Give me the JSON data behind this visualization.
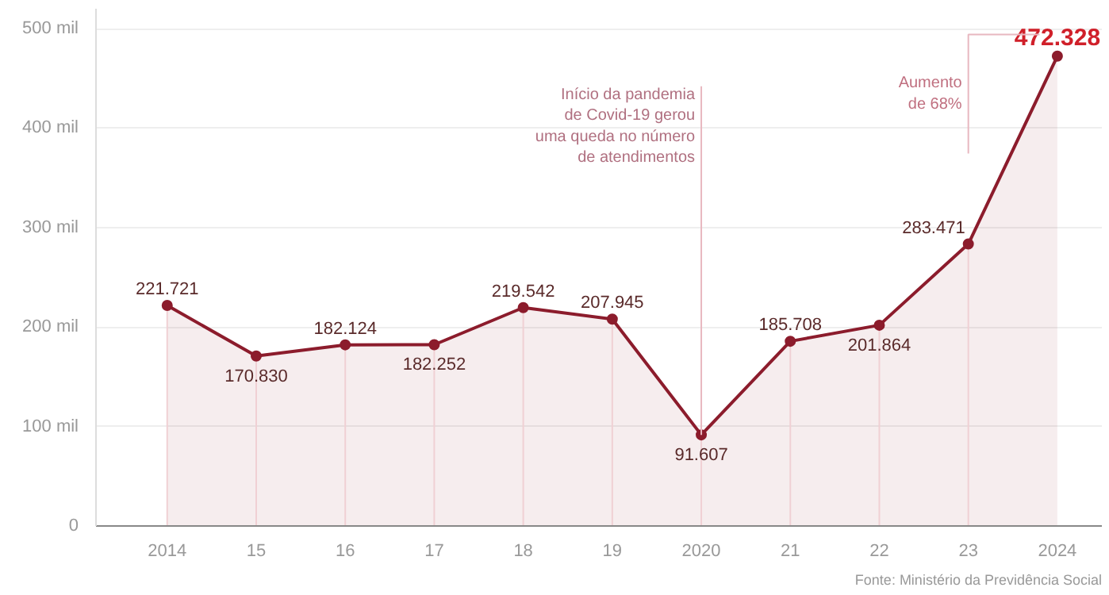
{
  "chart_data": {
    "type": "area",
    "categories": [
      "2014",
      "15",
      "16",
      "17",
      "18",
      "19",
      "2020",
      "21",
      "22",
      "23",
      "2024"
    ],
    "series": [
      {
        "color": "#8c1c2c",
        "values": [
          221.721,
          170.83,
          182.124,
          182.252,
          219.542,
          207.945,
          91.607,
          185.708,
          201.864,
          283.471,
          472.328
        ],
        "value_labels": [
          "221.721",
          "170.830",
          "182.124",
          "182.252",
          "219.542",
          "207.945",
          "91.607",
          "185.708",
          "201.864",
          "283.471",
          "472.328"
        ]
      }
    ],
    "ylim": [
      0,
      520
    ],
    "yticks": [
      0,
      {
        "value": 100,
        "label": "100 mil"
      },
      {
        "value": 200,
        "label": "200 mil"
      },
      {
        "value": 300,
        "label": "300 mil"
      },
      {
        "value": 400,
        "label": "400 mil"
      },
      {
        "value": 500,
        "label": "500 mil"
      }
    ],
    "grid": "y",
    "marker": "circle",
    "annotations": [
      {
        "text": "Início da pandemia\nde Covid-19 gerou\numa queda no número\nde atendimentos",
        "x": "2020",
        "y": 91.607
      },
      "Aumento\nde 68%",
      "Fonte: Ministério da Previdência Social"
    ]
  }
}
